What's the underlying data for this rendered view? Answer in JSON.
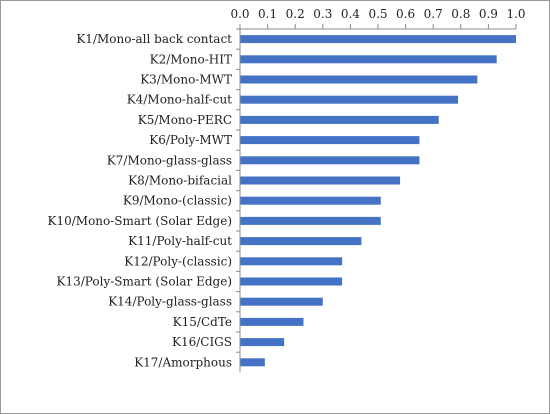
{
  "chart_data": {
    "type": "bar",
    "orientation": "horizontal",
    "title": "",
    "xlabel": "",
    "ylabel": "",
    "xlim": [
      0,
      1
    ],
    "x_ticks": [
      "0.0",
      "0.1",
      "0.2",
      "0.3",
      "0.4",
      "0.5",
      "0.6",
      "0.7",
      "0.8",
      "0.9",
      "1.0"
    ],
    "x_axis_position": "top",
    "grid": false,
    "legend": "none",
    "bar_color": "#4472C4",
    "categories": [
      "K1/Mono-all back contact",
      "K2/Mono-HIT",
      "K3/Mono-MWT",
      "K4/Mono-half-cut",
      "K5/Mono-PERC",
      "K6/Poly-MWT",
      "K7/Mono-glass-glass",
      "K8/Mono-bifacial",
      "K9/Mono-(classic)",
      "K10/Mono-Smart (Solar Edge)",
      "K11/Poly-half-cut",
      "K12/Poly-(classic)",
      "K13/Poly-Smart (Solar Edge)",
      "K14/Poly-glass-glass",
      "K15/CdTe",
      "K16/CIGS",
      "K17/Amorphous"
    ],
    "values": [
      1.0,
      0.93,
      0.86,
      0.79,
      0.72,
      0.65,
      0.65,
      0.58,
      0.51,
      0.51,
      0.44,
      0.37,
      0.37,
      0.3,
      0.23,
      0.16,
      0.09
    ]
  }
}
